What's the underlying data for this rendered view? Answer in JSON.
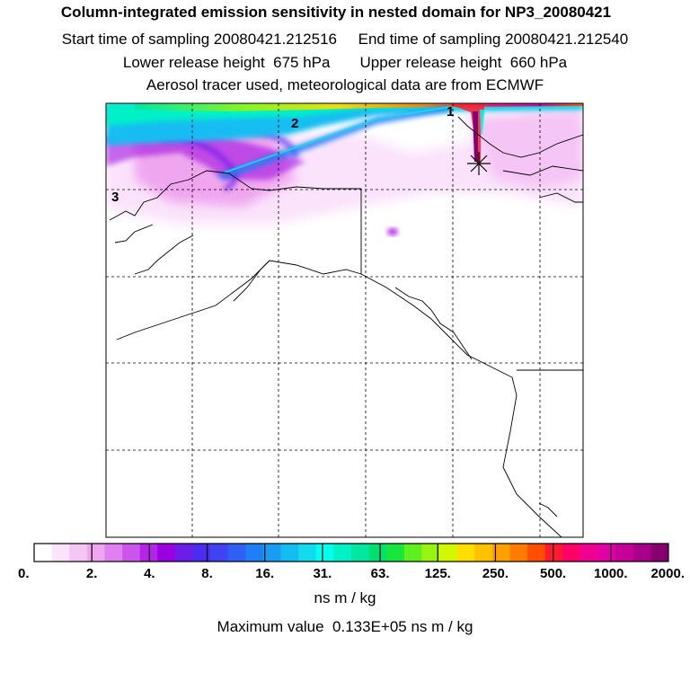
{
  "header": {
    "title": "Column-integrated emission sensitivity in nested domain for NP3_20080421",
    "start": "Start time of sampling 20080421.212516",
    "end": "End time of sampling 20080421.212540",
    "lower": "Lower release height  675 hPa",
    "upper": "Upper release height  660 hPa",
    "tracer": "Aerosol tracer used, meteorological data are from ECMWF"
  },
  "map": {
    "trajectory_labels": [
      "1",
      "2",
      "3"
    ],
    "release_marker": "release-point-star"
  },
  "colorbar": {
    "tick_labels": [
      "0.",
      "2.",
      "4.",
      "8.",
      "16.",
      "31.",
      "63.",
      "125.",
      "250.",
      "500.",
      "1000.",
      "2000."
    ],
    "colors": [
      "#ffffff",
      "#fbe3fb",
      "#f5c5f5",
      "#efa6ef",
      "#e07ff0",
      "#cc55ee",
      "#b522e8",
      "#9a00e0",
      "#6a1ee8",
      "#4b2cf0",
      "#3f43f2",
      "#2f5ff4",
      "#1f7ff5",
      "#189df4",
      "#13bdf2",
      "#10dcee",
      "#00ffee",
      "#00f0c8",
      "#00e8a0",
      "#00e070",
      "#19e63c",
      "#5ef020",
      "#99f510",
      "#d2f800",
      "#ffdd00",
      "#ffc000",
      "#ffa000",
      "#ff7c00",
      "#ff4e00",
      "#ff1a30",
      "#ff006a",
      "#f00090",
      "#e000a4",
      "#c60098",
      "#a8008a",
      "#880070"
    ],
    "units": "ns m / kg"
  },
  "footer": {
    "max_value": "Maximum value  0.133E+05 ns m / kg"
  }
}
